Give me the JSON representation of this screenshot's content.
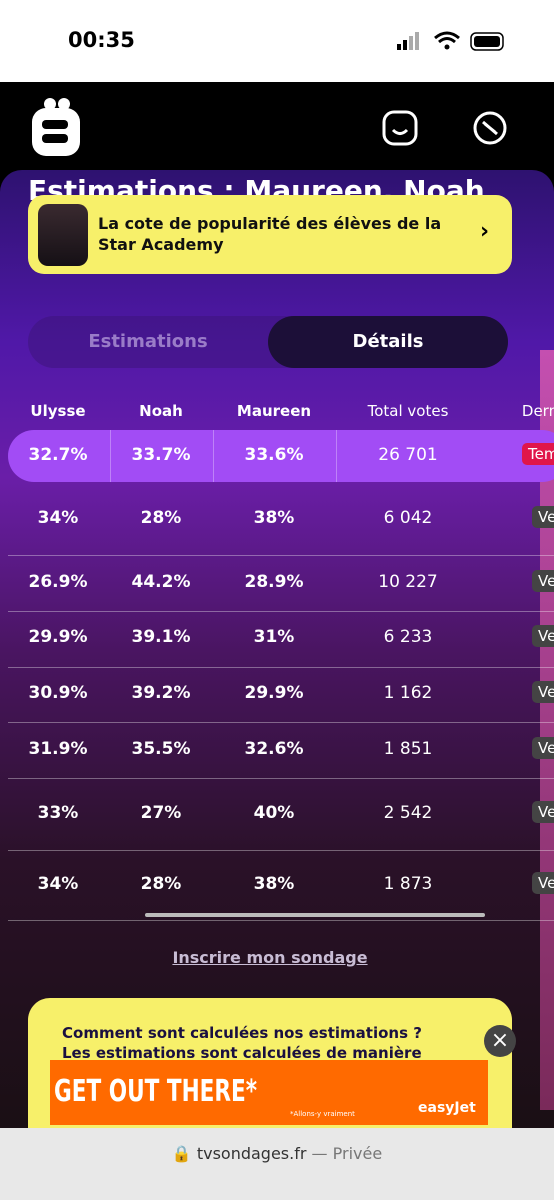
{
  "status_bar": {
    "time": "00:35"
  },
  "page": {
    "title": "Estimations : Maureen, Noah"
  },
  "banner": {
    "text": "La cote de popularité des élèves de la Star Academy"
  },
  "tabs": [
    "Estimations",
    "Détails"
  ],
  "table": {
    "headers": [
      "Ulysse",
      "Noah",
      "Maureen",
      "Total votes",
      "Dern"
    ],
    "rows": [
      [
        "32.7%",
        "33.7%",
        "33.6%",
        "26 701",
        "Tem"
      ],
      [
        "34%",
        "28%",
        "38%",
        "6 042",
        "Ve"
      ],
      [
        "26.9%",
        "44.2%",
        "28.9%",
        "10 227",
        "Ve"
      ],
      [
        "29.9%",
        "39.1%",
        "31%",
        "6 233",
        "Ve"
      ],
      [
        "30.9%",
        "39.2%",
        "29.9%",
        "1 162",
        "Ve"
      ],
      [
        "31.9%",
        "35.5%",
        "32.6%",
        "1 851",
        "Ve"
      ],
      [
        "33%",
        "27%",
        "40%",
        "2 542",
        "Ve"
      ],
      [
        "34%",
        "28%",
        "38%",
        "1 873",
        "Ve"
      ]
    ]
  },
  "link": "Inscrire mon sondage",
  "info_card": {
    "title": "Comment sont calculées nos estimations ?",
    "text": "Les estimations sont calculées de manière"
  },
  "ad": {
    "headline": "GET OUT THERE*",
    "small": "*Allons-y vraiment",
    "brand": "easyJet"
  },
  "url_bar": {
    "domain": "tvsondages.fr",
    "mode": "— Privée"
  }
}
